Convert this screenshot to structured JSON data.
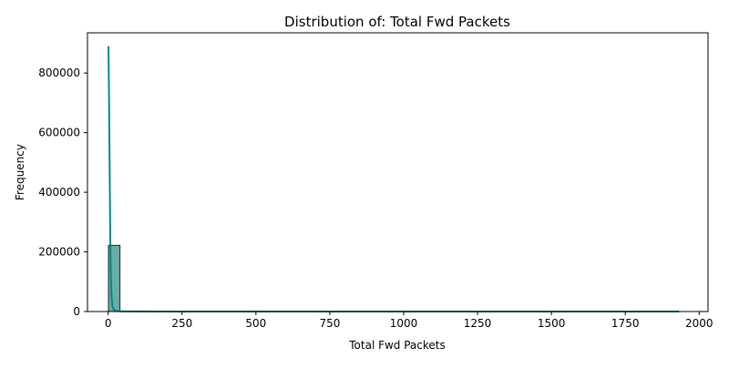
{
  "chart_data": {
    "type": "bar",
    "title": "Distribution of: Total Fwd Packets",
    "xlabel": "Total Fwd Packets",
    "ylabel": "Frequency",
    "xlim": [
      -70,
      2030
    ],
    "ylim": [
      0,
      935000
    ],
    "x_ticks": [
      0,
      250,
      500,
      750,
      1000,
      1250,
      1500,
      1750,
      2000
    ],
    "x_tick_labels": [
      "0",
      "250",
      "500",
      "750",
      "1000",
      "1250",
      "1500",
      "1750",
      "2000"
    ],
    "y_ticks": [
      0,
      200000,
      400000,
      600000,
      800000
    ],
    "y_tick_labels": [
      "0",
      "200000",
      "400000",
      "600000",
      "800000"
    ],
    "grid": false,
    "bins": [
      {
        "x0": 1,
        "x1": 40,
        "count": 222000
      }
    ],
    "kde": {
      "x": [
        1,
        3,
        5,
        7,
        9,
        11,
        13,
        15,
        20,
        30,
        50,
        80,
        150,
        300,
        500,
        1000,
        1500,
        1932
      ],
      "y": [
        890000,
        720000,
        480000,
        260000,
        120000,
        60000,
        30000,
        15000,
        5000,
        1500,
        500,
        200,
        100,
        50,
        20,
        10,
        5,
        2
      ]
    },
    "colors": {
      "bar_fill": "#69aca8",
      "bar_edge": "#222222",
      "kde_line": "#008b8b"
    }
  }
}
